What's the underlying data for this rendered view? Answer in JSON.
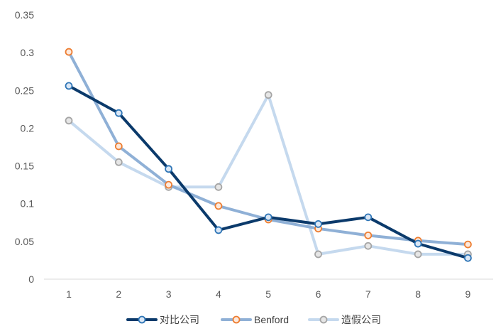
{
  "chart_data": {
    "type": "line",
    "categories": [
      "1",
      "2",
      "3",
      "4",
      "5",
      "6",
      "7",
      "8",
      "9"
    ],
    "ylim": [
      0,
      0.35
    ],
    "yticks": [
      "0",
      "0.05",
      "0.1",
      "0.15",
      "0.2",
      "0.25",
      "0.3",
      "0.35"
    ],
    "grid": false,
    "legend_position": "bottom",
    "series": [
      {
        "name": "对比公司",
        "values": [
          0.256,
          0.22,
          0.146,
          0.065,
          0.082,
          0.073,
          0.082,
          0.047,
          0.028
        ],
        "line_color": "#0b3a6b",
        "marker_stroke": "#2e75b6",
        "marker_fill": "#dbe7f5"
      },
      {
        "name": "Benford",
        "values": [
          0.301,
          0.176,
          0.125,
          0.097,
          0.079,
          0.067,
          0.058,
          0.051,
          0.046
        ],
        "line_color": "#8fb0d6",
        "marker_stroke": "#ed7d31",
        "marker_fill": "#fde9dc"
      },
      {
        "name": "造假公司",
        "values": [
          0.21,
          0.155,
          0.122,
          0.122,
          0.244,
          0.033,
          0.044,
          0.033,
          0.033
        ],
        "line_color": "#c5d9ee",
        "marker_stroke": "#a5a5a5",
        "marker_fill": "#e6e6e6"
      }
    ]
  }
}
